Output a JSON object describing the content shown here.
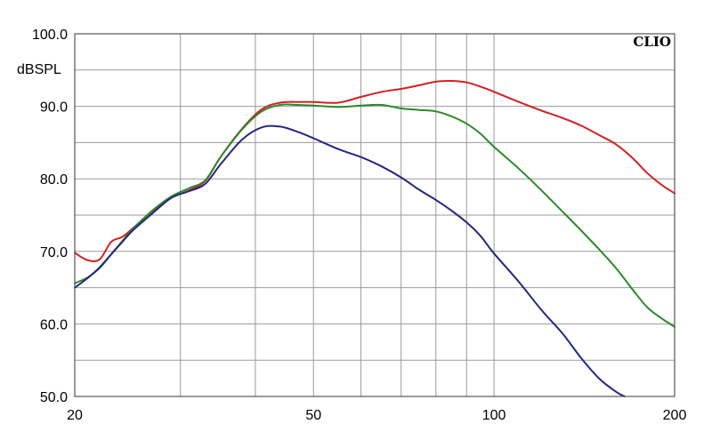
{
  "chart_data": {
    "type": "line",
    "brand": "CLIO",
    "ylabel": "dBSPL",
    "xscale": "log",
    "xlim": [
      20,
      200
    ],
    "ylim": [
      50,
      100
    ],
    "x_tick_labels": [
      "20",
      "50",
      "100",
      "200"
    ],
    "y_tick_labels": [
      "100.0",
      "90.0",
      "80.0",
      "70.0",
      "60.0",
      "50.0"
    ],
    "grid": true,
    "series": [
      {
        "color": "#d42020",
        "x": [
          20,
          21,
          22,
          23,
          24,
          25,
          27,
          29,
          31,
          33,
          35,
          38,
          41,
          44,
          47,
          50,
          55,
          60,
          65,
          70,
          75,
          80,
          85,
          90,
          95,
          100,
          110,
          120,
          130,
          140,
          150,
          160,
          170,
          180,
          190,
          200
        ],
        "y": [
          69.8,
          68.8,
          68.9,
          71.3,
          72.0,
          73.2,
          75.6,
          77.4,
          78.4,
          79.7,
          83.0,
          86.9,
          89.6,
          90.5,
          90.6,
          90.6,
          90.5,
          91.3,
          92.0,
          92.4,
          92.9,
          93.4,
          93.5,
          93.3,
          92.7,
          92.0,
          90.6,
          89.4,
          88.4,
          87.3,
          86.0,
          84.7,
          82.9,
          80.8,
          79.2,
          78.0
        ]
      },
      {
        "color": "#2a8a2a",
        "x": [
          20,
          21,
          22,
          23,
          24,
          25,
          27,
          29,
          31,
          33,
          35,
          38,
          41,
          44,
          47,
          50,
          55,
          60,
          65,
          70,
          75,
          80,
          85,
          90,
          95,
          100,
          110,
          120,
          130,
          140,
          150,
          160,
          170,
          180,
          190,
          200
        ],
        "y": [
          65.6,
          66.4,
          67.7,
          69.6,
          71.4,
          73.1,
          75.7,
          77.6,
          78.7,
          79.8,
          83.0,
          86.8,
          89.3,
          90.2,
          90.2,
          90.1,
          89.9,
          90.1,
          90.2,
          89.7,
          89.5,
          89.3,
          88.6,
          87.6,
          86.2,
          84.4,
          81.4,
          78.4,
          75.5,
          72.8,
          70.2,
          67.6,
          64.8,
          62.3,
          60.8,
          59.6
        ]
      },
      {
        "color": "#262680",
        "x": [
          20,
          21,
          22,
          23,
          24,
          25,
          27,
          29,
          31,
          33,
          35,
          38,
          41,
          44,
          47,
          50,
          55,
          60,
          65,
          70,
          75,
          80,
          85,
          90,
          95,
          100,
          110,
          120,
          130,
          140,
          150,
          160,
          165
        ],
        "y": [
          65.0,
          66.3,
          67.8,
          69.6,
          71.3,
          72.9,
          75.3,
          77.4,
          78.3,
          79.3,
          82.0,
          85.4,
          87.1,
          87.2,
          86.5,
          85.6,
          84.1,
          83.0,
          81.7,
          80.2,
          78.5,
          77.1,
          75.6,
          74.0,
          72.1,
          69.7,
          65.8,
          61.9,
          58.7,
          55.2,
          52.4,
          50.6,
          50.0
        ]
      }
    ]
  }
}
